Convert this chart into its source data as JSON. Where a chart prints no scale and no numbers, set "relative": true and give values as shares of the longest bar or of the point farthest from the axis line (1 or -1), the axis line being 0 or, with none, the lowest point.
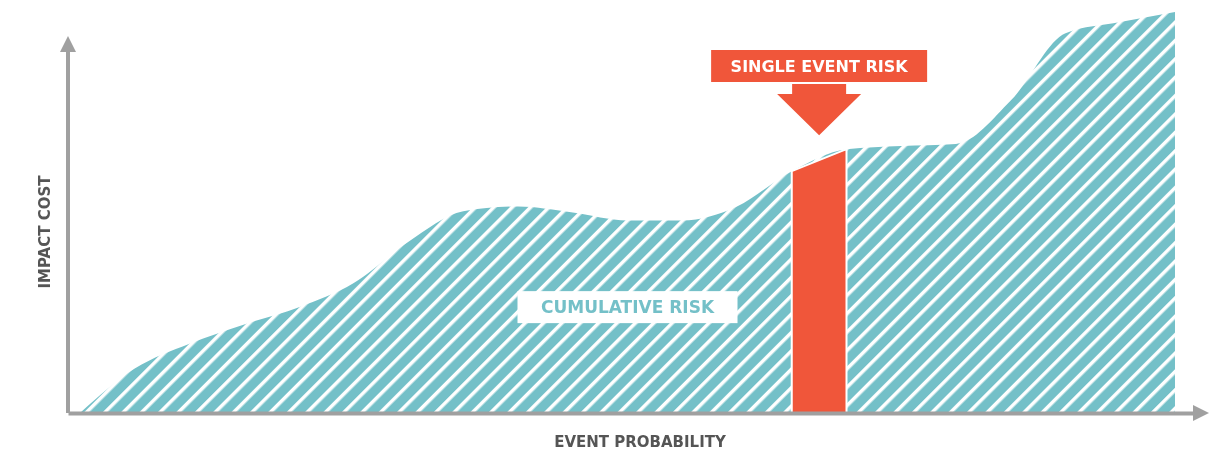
{
  "chart_data": {
    "type": "area",
    "xlabel": "EVENT PROBABILITY",
    "ylabel": "IMPACT COST",
    "relative": true,
    "categories": [
      null,
      null,
      null,
      null,
      null,
      null,
      null,
      null,
      null,
      null,
      null,
      null,
      null,
      null,
      null,
      null,
      null,
      null,
      null,
      null,
      null
    ],
    "series": [
      {
        "name": "CUMULATIVE RISK",
        "color": "#74c0c8",
        "values": [
          0,
          0.111,
          0.173,
          0.221,
          0.264,
          0.324,
          0.427,
          0.503,
          0.515,
          0.5,
          0.48,
          0.48,
          0.515,
          0.603,
          0.658,
          0.666,
          0.671,
          0.779,
          0.947,
          0.975,
          1
        ]
      },
      {
        "name": "SINGLE EVENT RISK",
        "color": "#f0563a",
        "values": [
          null,
          null,
          null,
          null,
          null,
          null,
          null,
          null,
          null,
          null,
          null,
          null,
          null,
          0.603,
          0.658,
          null,
          null,
          null,
          null,
          null,
          null
        ]
      }
    ]
  }
}
